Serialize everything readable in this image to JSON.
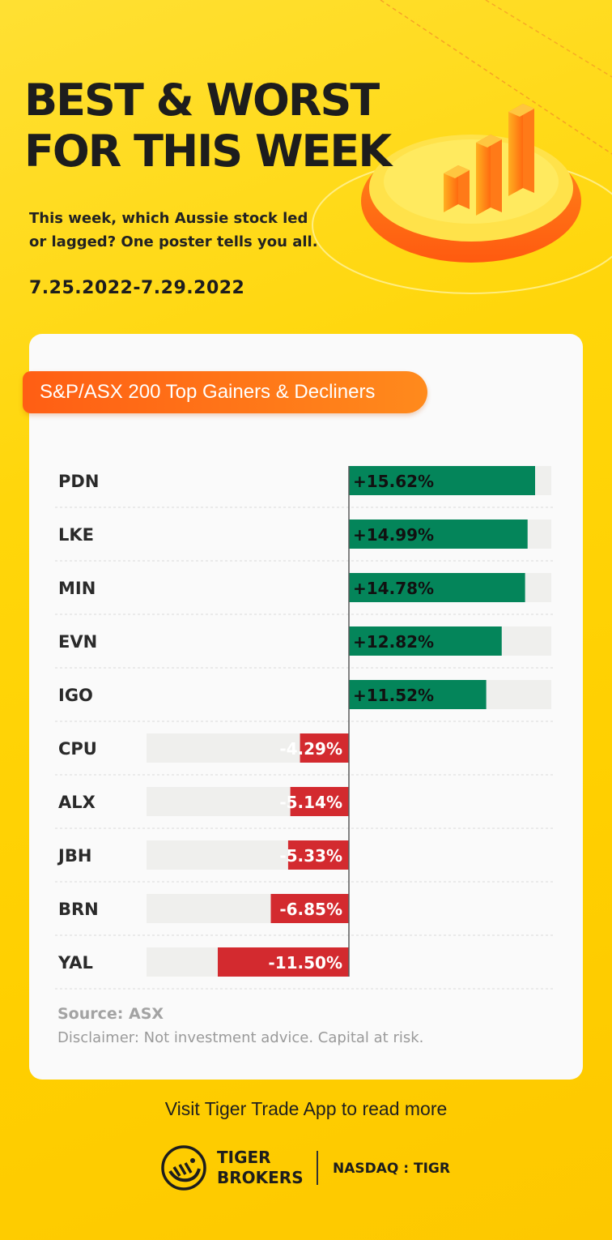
{
  "header": {
    "title_line1": "BEST & WORST",
    "title_line2": "FOR THIS WEEK",
    "subtitle_line1": "This week, which Aussie stock led",
    "subtitle_line2": "or lagged? One poster tells you all.",
    "date_range": "7.25.2022-7.29.2022"
  },
  "colors": {
    "gain": "#04855a",
    "loss": "#d32a2f",
    "track": "#efefed",
    "accent": "#ff6a16"
  },
  "chart_data": {
    "type": "bar",
    "title": "S&P/ASX 200 Top Gainers & Decliners",
    "categories": [
      "PDN",
      "LKE",
      "MIN",
      "EVN",
      "IGO",
      "CPU",
      "ALX",
      "JBH",
      "BRN",
      "YAL"
    ],
    "values": [
      15.62,
      14.99,
      14.78,
      12.82,
      11.52,
      -4.29,
      -5.14,
      -5.33,
      -6.85,
      -11.5
    ],
    "labels": [
      "+15.62%",
      "+14.99%",
      "+14.78%",
      "+12.82%",
      "+11.52%",
      "-4.29%",
      "-5.14%",
      "-5.33%",
      "-6.85%",
      "-11.50%"
    ],
    "unit": "%",
    "orientation": "horizontal",
    "gridlines": true
  },
  "footer": {
    "source": "Source: ASX",
    "disclaimer": "Disclaimer: Not investment advice. Capital at risk.",
    "visit": "Visit Tiger Trade App to read more",
    "brand_line1": "TIGER",
    "brand_line2": "BROKERS",
    "ticker": "NASDAQ : TIGR",
    "logo_icon": "tiger-logo-icon"
  }
}
